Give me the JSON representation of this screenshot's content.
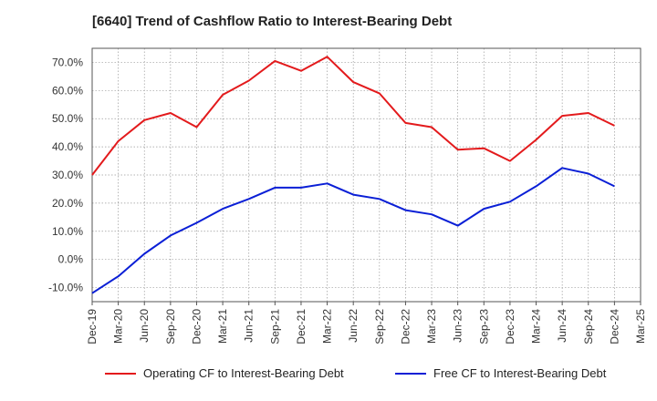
{
  "title": "[6640]  Trend of Cashflow Ratio to Interest-Bearing Debt",
  "chart_data": {
    "type": "line",
    "title": "[6640]  Trend of Cashflow Ratio to Interest-Bearing Debt",
    "xlabel": "",
    "ylabel": "",
    "x": [
      "Dec-19",
      "Mar-20",
      "Jun-20",
      "Sep-20",
      "Dec-20",
      "Mar-21",
      "Jun-21",
      "Sep-21",
      "Dec-21",
      "Mar-22",
      "Jun-22",
      "Sep-22",
      "Dec-22",
      "Mar-23",
      "Jun-23",
      "Sep-23",
      "Dec-23",
      "Mar-24",
      "Jun-24",
      "Sep-24",
      "Dec-24",
      "Mar-25"
    ],
    "ylim": [
      -15,
      75
    ],
    "yticks": [
      -10,
      0,
      10,
      20,
      30,
      40,
      50,
      60,
      70
    ],
    "ytick_labels": [
      "-10.0%",
      "0.0%",
      "10.0%",
      "20.0%",
      "30.0%",
      "40.0%",
      "50.0%",
      "60.0%",
      "70.0%"
    ],
    "grid": true,
    "legend_position": "bottom",
    "series": [
      {
        "name": "Operating CF to Interest-Bearing Debt",
        "color": "#e31a1c",
        "values": [
          30.0,
          42.0,
          49.5,
          52.0,
          47.0,
          58.5,
          63.5,
          70.5,
          67.0,
          72.0,
          63.0,
          59.0,
          48.5,
          47.0,
          39.0,
          39.5,
          35.0,
          42.5,
          51.0,
          52.0,
          47.5,
          null
        ]
      },
      {
        "name": "Free CF to Interest-Bearing Debt",
        "color": "#0a1fd6",
        "values": [
          -12.0,
          -6.0,
          2.0,
          8.5,
          13.0,
          18.0,
          21.5,
          25.5,
          25.5,
          27.0,
          23.0,
          21.5,
          17.5,
          16.0,
          12.0,
          18.0,
          20.5,
          26.0,
          32.5,
          30.5,
          26.0,
          null
        ]
      }
    ]
  }
}
